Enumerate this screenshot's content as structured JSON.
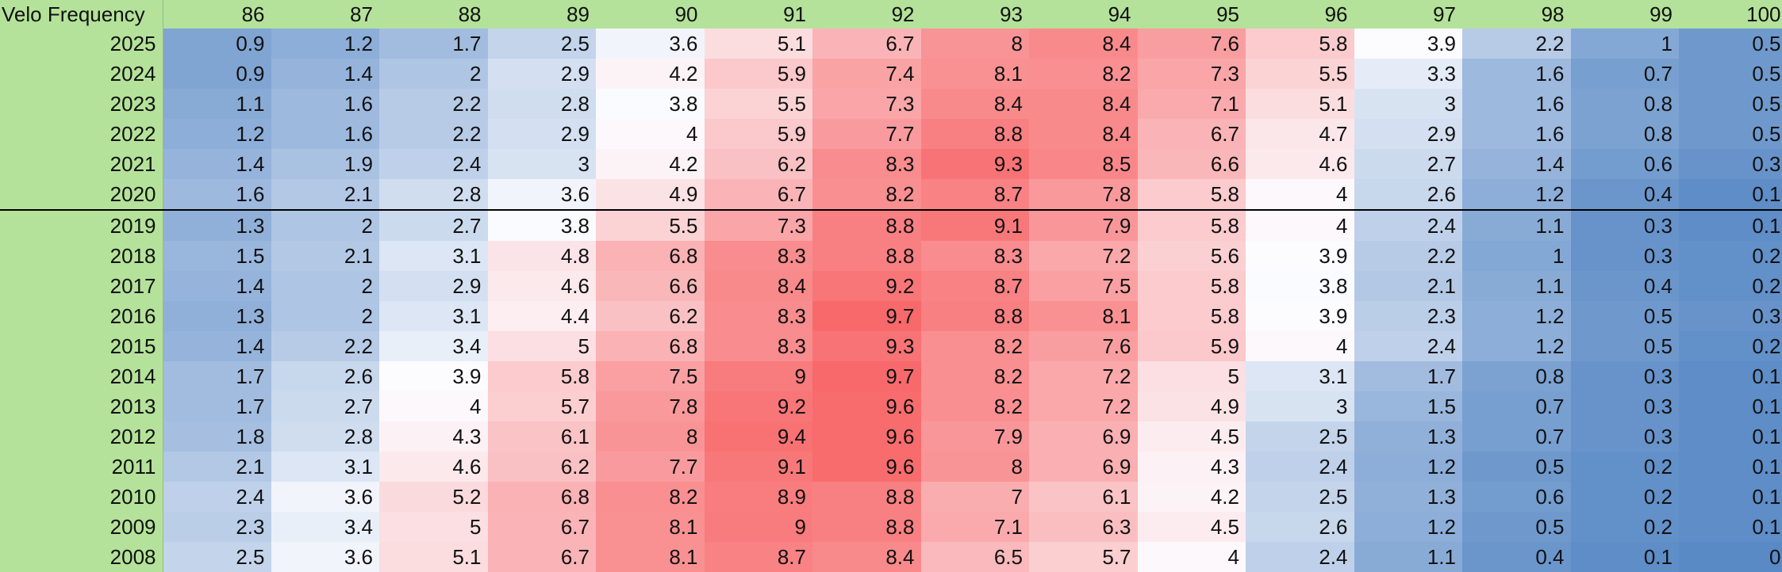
{
  "chart_data": {
    "type": "heatmap",
    "title": "Velo Frequency",
    "x_categories": [
      "86",
      "87",
      "88",
      "89",
      "90",
      "91",
      "92",
      "93",
      "94",
      "95",
      "96",
      "97",
      "98",
      "99",
      "100"
    ],
    "y_categories": [
      "2025",
      "2024",
      "2023",
      "2022",
      "2021",
      "2020",
      "2019",
      "2018",
      "2017",
      "2016",
      "2015",
      "2014",
      "2013",
      "2012",
      "2011",
      "2010",
      "2009",
      "2008"
    ],
    "values": [
      [
        0.9,
        1.2,
        1.7,
        2.5,
        3.6,
        5.1,
        6.7,
        8,
        8.4,
        7.6,
        5.8,
        3.9,
        2.2,
        1,
        0.5
      ],
      [
        0.9,
        1.4,
        2,
        2.9,
        4.2,
        5.9,
        7.4,
        8.1,
        8.2,
        7.3,
        5.5,
        3.3,
        1.6,
        0.7,
        0.5
      ],
      [
        1.1,
        1.6,
        2.2,
        2.8,
        3.8,
        5.5,
        7.3,
        8.4,
        8.4,
        7.1,
        5.1,
        3,
        1.6,
        0.8,
        0.5
      ],
      [
        1.2,
        1.6,
        2.2,
        2.9,
        4,
        5.9,
        7.7,
        8.8,
        8.4,
        6.7,
        4.7,
        2.9,
        1.6,
        0.8,
        0.5
      ],
      [
        1.4,
        1.9,
        2.4,
        3,
        4.2,
        6.2,
        8.3,
        9.3,
        8.5,
        6.6,
        4.6,
        2.7,
        1.4,
        0.6,
        0.3
      ],
      [
        1.6,
        2.1,
        2.8,
        3.6,
        4.9,
        6.7,
        8.2,
        8.7,
        7.8,
        5.8,
        4,
        2.6,
        1.2,
        0.4,
        0.1
      ],
      [
        1.3,
        2,
        2.7,
        3.8,
        5.5,
        7.3,
        8.8,
        9.1,
        7.9,
        5.8,
        4,
        2.4,
        1.1,
        0.3,
        0.1
      ],
      [
        1.5,
        2.1,
        3.1,
        4.8,
        6.8,
        8.3,
        8.8,
        8.3,
        7.2,
        5.6,
        3.9,
        2.2,
        1,
        0.3,
        0.2
      ],
      [
        1.4,
        2,
        2.9,
        4.6,
        6.6,
        8.4,
        9.2,
        8.7,
        7.5,
        5.8,
        3.8,
        2.1,
        1.1,
        0.4,
        0.2
      ],
      [
        1.3,
        2,
        3.1,
        4.4,
        6.2,
        8.3,
        9.7,
        8.8,
        8.1,
        5.8,
        3.9,
        2.3,
        1.2,
        0.5,
        0.3
      ],
      [
        1.4,
        2.2,
        3.4,
        5,
        6.8,
        8.3,
        9.3,
        8.2,
        7.6,
        5.9,
        4,
        2.4,
        1.2,
        0.5,
        0.2
      ],
      [
        1.7,
        2.6,
        3.9,
        5.8,
        7.5,
        9,
        9.7,
        8.2,
        7.2,
        5,
        3.1,
        1.7,
        0.8,
        0.3,
        0.1
      ],
      [
        1.7,
        2.7,
        4,
        5.7,
        7.8,
        9.2,
        9.6,
        8.2,
        7.2,
        4.9,
        3,
        1.5,
        0.7,
        0.3,
        0.1
      ],
      [
        1.8,
        2.8,
        4.3,
        6.1,
        8,
        9.4,
        9.6,
        7.9,
        6.9,
        4.5,
        2.5,
        1.3,
        0.7,
        0.3,
        0.1
      ],
      [
        2.1,
        3.1,
        4.6,
        6.2,
        7.7,
        9.1,
        9.6,
        8,
        6.9,
        4.3,
        2.4,
        1.2,
        0.5,
        0.2,
        0.1
      ],
      [
        2.4,
        3.6,
        5.2,
        6.8,
        8.2,
        8.9,
        8.8,
        7,
        6.1,
        4.2,
        2.5,
        1.3,
        0.6,
        0.2,
        0.1
      ],
      [
        2.3,
        3.4,
        5,
        6.7,
        8.1,
        9,
        8.8,
        7.1,
        6.3,
        4.5,
        2.6,
        1.2,
        0.5,
        0.2,
        0.1
      ],
      [
        2.5,
        3.6,
        5.1,
        6.7,
        8.1,
        8.7,
        8.4,
        6.5,
        5.7,
        4,
        2.4,
        1.1,
        0.4,
        0.1,
        0
      ]
    ],
    "color_scale": {
      "low": "#5a8ac6",
      "mid": "#fcfcff",
      "high": "#f8696b"
    },
    "separator_after_row": "2020",
    "header_color": "#b4e29a"
  }
}
